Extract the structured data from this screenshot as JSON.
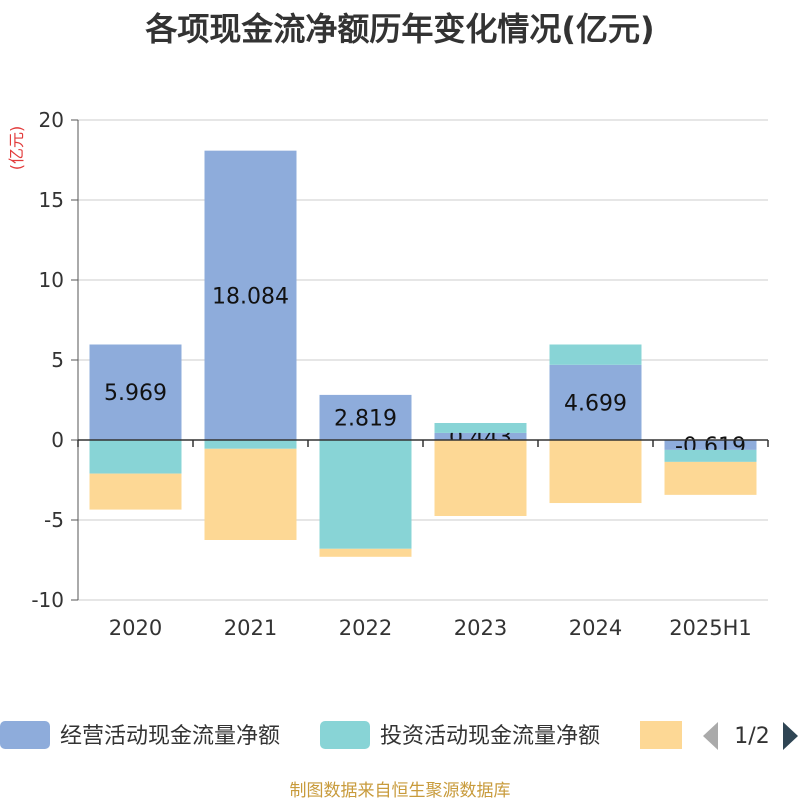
{
  "chart_data": {
    "type": "bar",
    "stacked": true,
    "title": "各项现金流净额历年变化情况(亿元)",
    "ylabel": "(亿元)",
    "xlabel": "",
    "categories": [
      "2020",
      "2021",
      "2022",
      "2023",
      "2024",
      "2025H1"
    ],
    "ylim": [
      -10,
      20
    ],
    "yticks": [
      -10,
      -5,
      0,
      5,
      10,
      15,
      20
    ],
    "grid": true,
    "legend": "bottom",
    "series": [
      {
        "name": "经营活动现金流量净额",
        "color": "#8eacdb",
        "show_labels": true,
        "values": [
          5.969,
          18.084,
          2.819,
          0.443,
          4.699,
          -0.619
        ]
      },
      {
        "name": "投资活动现金流量净额",
        "color": "#88d4d6",
        "values": [
          -2.1,
          -0.55,
          -6.8,
          0.62,
          1.27,
          -0.75
        ]
      },
      {
        "color": "#fdd895",
        "values": [
          -2.25,
          -5.7,
          -0.5,
          -4.75,
          -3.94,
          -2.06
        ]
      }
    ]
  },
  "legend": {
    "page": "1/2",
    "prev_icon": "triangle-left-icon",
    "next_icon": "triangle-right-icon"
  },
  "footer": "制图数据来自恒生聚源数据库"
}
